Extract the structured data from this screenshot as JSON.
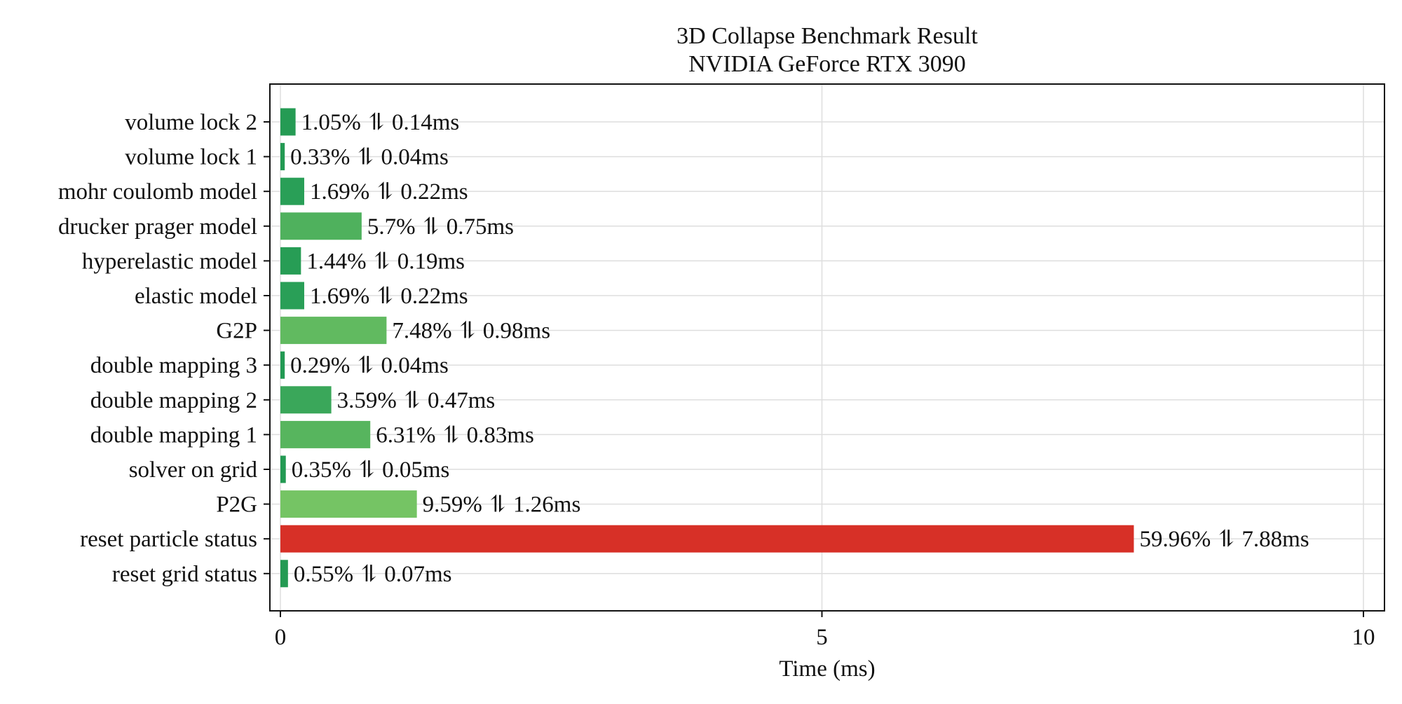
{
  "chart_data": {
    "type": "bar",
    "orientation": "horizontal",
    "title": "3D Collapse Benchmark Result",
    "subtitle": "NVIDIA GeForce RTX 3090",
    "xlabel": "Time (ms)",
    "ylabel": "",
    "xlim": [
      0,
      10
    ],
    "xticks": [
      "0",
      "5",
      "10"
    ],
    "grid": true,
    "legend": "none",
    "categories": [
      "volume lock 2",
      "volume lock 1",
      "mohr coulomb model",
      "drucker prager model",
      "hyperelastic model",
      "elastic model",
      "G2P",
      "double mapping 3",
      "double mapping 2",
      "double mapping 1",
      "solver on grid",
      "P2G",
      "reset particle status",
      "reset grid status"
    ],
    "values": [
      0.14,
      0.04,
      0.22,
      0.75,
      0.19,
      0.22,
      0.98,
      0.04,
      0.47,
      0.83,
      0.05,
      1.26,
      7.88,
      0.07
    ],
    "data_labels": [
      "1.05% ⥮ 0.14ms",
      "0.33% ⥮ 0.04ms",
      "1.69% ⥮ 0.22ms",
      "5.7% ⥮ 0.75ms",
      "1.44% ⥮ 0.19ms",
      "1.69% ⥮ 0.22ms",
      "7.48% ⥮ 0.98ms",
      "0.29% ⥮ 0.04ms",
      "3.59% ⥮ 0.47ms",
      "6.31% ⥮ 0.83ms",
      "0.35% ⥮ 0.05ms",
      "9.59% ⥮ 1.26ms",
      "59.96% ⥮ 7.88ms",
      "0.55% ⥮ 0.07ms"
    ],
    "colors": [
      "#259b54",
      "#239a53",
      "#299f57",
      "#4fb15d",
      "#279d55",
      "#299f57",
      "#61ba60",
      "#229a53",
      "#3aa75a",
      "#57b55e",
      "#239a53",
      "#75c464",
      "#d73027",
      "#249a53"
    ]
  }
}
